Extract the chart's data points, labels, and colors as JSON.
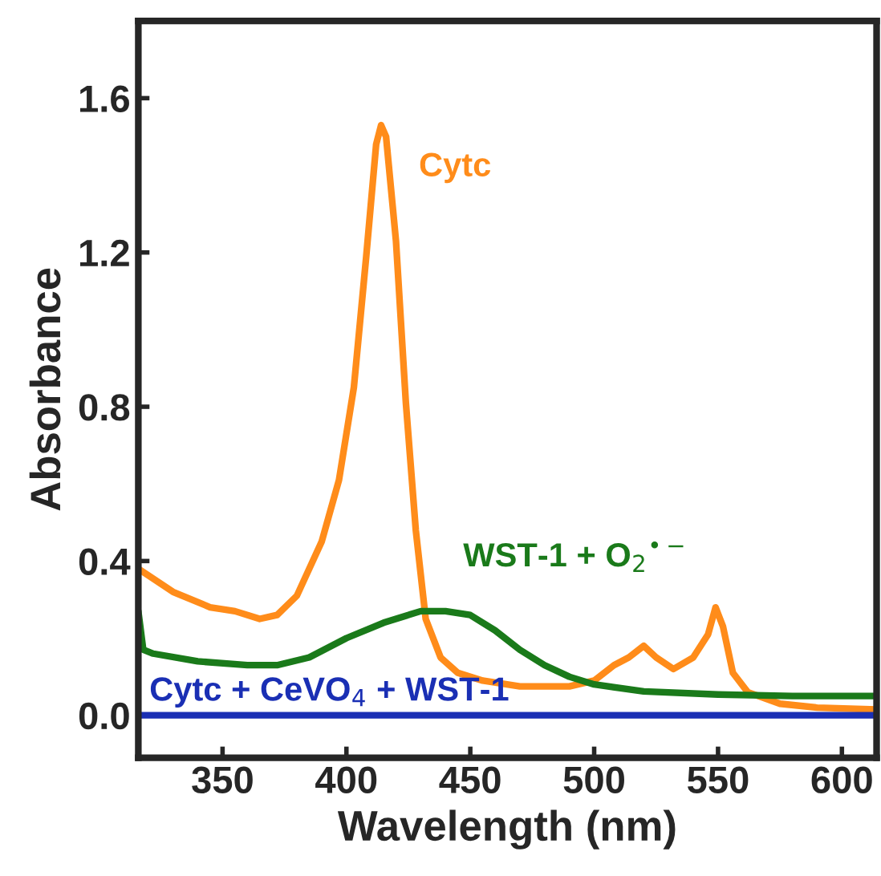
{
  "chart_data": {
    "type": "line",
    "xlabel": "Wavelength (nm)",
    "ylabel": "Absorbance",
    "xlim": [
      316,
      614
    ],
    "ylim": [
      -0.11,
      1.8
    ],
    "xticks": [
      350,
      400,
      450,
      500,
      550,
      600
    ],
    "yticks": [
      {
        "value": 0,
        "label": "0.0"
      },
      {
        "value": 0.4,
        "label": "0.4"
      },
      {
        "value": 0.8,
        "label": "0.8"
      },
      {
        "value": 1.2,
        "label": "1.2"
      },
      {
        "value": 1.6,
        "label": "1.6"
      }
    ],
    "grid": false,
    "legend": false,
    "marker": "none",
    "line_style": "solid",
    "series": [
      {
        "name": "Cytc",
        "color": "#ff8c1a",
        "x": [
          316,
          330,
          345,
          355,
          365,
          372,
          380,
          390,
          397,
          403,
          408,
          412,
          414,
          416,
          420,
          424,
          428,
          432,
          438,
          445,
          455,
          470,
          490,
          500,
          508,
          514,
          520,
          525,
          532,
          540,
          546,
          549,
          552,
          556,
          562,
          575,
          590,
          614
        ],
        "values": [
          0.38,
          0.32,
          0.28,
          0.27,
          0.25,
          0.26,
          0.31,
          0.45,
          0.61,
          0.85,
          1.19,
          1.48,
          1.53,
          1.5,
          1.23,
          0.81,
          0.48,
          0.25,
          0.15,
          0.11,
          0.09,
          0.075,
          0.075,
          0.09,
          0.13,
          0.15,
          0.18,
          0.15,
          0.12,
          0.15,
          0.21,
          0.28,
          0.23,
          0.11,
          0.06,
          0.03,
          0.02,
          0.015
        ]
      },
      {
        "name": "WST-1 + O$_{2}$$^{•−}$",
        "color": "#1a7a1a",
        "x": [
          316,
          318,
          322,
          340,
          360,
          372,
          385,
          400,
          415,
          430,
          440,
          450,
          460,
          470,
          480,
          490,
          500,
          520,
          550,
          580,
          614
        ],
        "values": [
          0.27,
          0.17,
          0.16,
          0.14,
          0.13,
          0.13,
          0.15,
          0.2,
          0.24,
          0.27,
          0.27,
          0.26,
          0.22,
          0.17,
          0.13,
          0.1,
          0.08,
          0.062,
          0.054,
          0.05,
          0.05
        ]
      },
      {
        "name": "Cytc + CeVO$_{4}$ + WST-1",
        "color": "#1a2fb4",
        "x": [
          316,
          614
        ],
        "values": [
          0,
          0
        ]
      }
    ]
  }
}
